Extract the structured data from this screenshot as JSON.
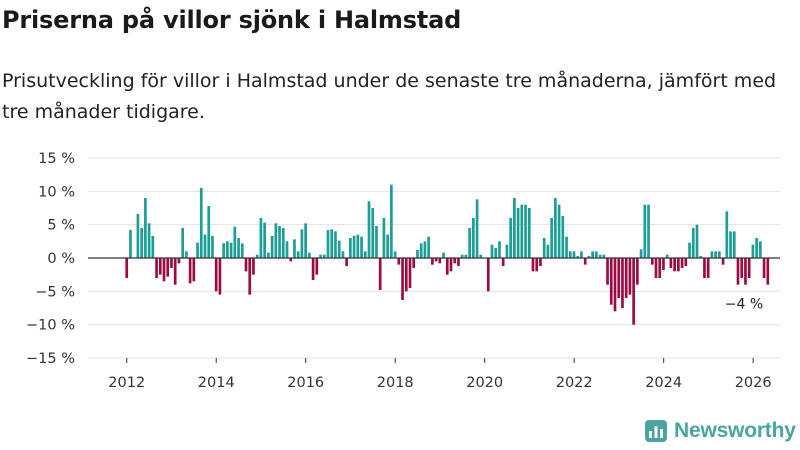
{
  "title": "Priserna på villor sjönk i Halmstad",
  "subtitle": "Prisutveckling för villor i Halmstad under de senaste tre månaderna, jämfört med tre månader tidigare.",
  "brand": "Newsworthy",
  "colors": {
    "positive": "#1a9e96",
    "negative": "#9c0a45",
    "grid": "#e3e3e3",
    "brand": "#4aa5a0"
  },
  "chart_data": {
    "type": "bar",
    "title": "Priserna på villor sjönk i Halmstad",
    "xlabel": "",
    "ylabel": "",
    "x_start": 2012.0,
    "x_step": 0.0833,
    "xlim": [
      2011.0,
      2026.6
    ],
    "ylim": [
      -15,
      15
    ],
    "yticks": [
      15,
      10,
      5,
      0,
      -5,
      -10,
      -15
    ],
    "ytick_labels": [
      "15 %",
      "10 %",
      "5 %",
      "0 %",
      "−5 %",
      "−10 %",
      "−15 %"
    ],
    "xticks": [
      2012,
      2014,
      2016,
      2018,
      2020,
      2022,
      2024,
      2026
    ],
    "xtick_labels": [
      "2012",
      "2014",
      "2016",
      "2018",
      "2020",
      "2022",
      "2024",
      "2026"
    ],
    "last_value_label": "−4 %",
    "values": [
      -3,
      4.2,
      0,
      6.6,
      4.5,
      9,
      5.2,
      3.3,
      -3,
      -2.5,
      -3.5,
      -2.8,
      -1.5,
      -4,
      -0.8,
      4.5,
      1,
      -3.8,
      -3.5,
      2.3,
      10.5,
      3.5,
      7.8,
      3.3,
      -5,
      -5.5,
      2.2,
      2.5,
      2.3,
      4.7,
      3,
      2.2,
      -2,
      -5.5,
      -2.5,
      0.5,
      6,
      5.3,
      0.8,
      3.3,
      5.2,
      4.8,
      4.5,
      2.5,
      -0.5,
      2.8,
      1,
      4.3,
      5.2,
      0.8,
      -3.3,
      -2.5,
      0.5,
      0.5,
      4.2,
      4.3,
      4,
      2.6,
      1,
      -1.2,
      3,
      3.3,
      3.5,
      3.2,
      1,
      8.5,
      7.5,
      4.8,
      -4.8,
      6,
      3.5,
      11,
      1,
      -1,
      -6.3,
      -5,
      -4.5,
      -1.5,
      1.2,
      2.2,
      2.5,
      3.2,
      -1,
      -0.5,
      -0.8,
      0.8,
      -2.5,
      -2,
      -0.8,
      -1.2,
      0.5,
      0.5,
      4.5,
      6,
      8.8,
      0.5,
      0,
      -5,
      2,
      1.5,
      2.5,
      -1.2,
      2,
      6,
      9,
      7.5,
      8,
      8,
      7.5,
      -2,
      -2,
      -1.2,
      3,
      2,
      6,
      9,
      8,
      6.3,
      3.2,
      1,
      1,
      0.3,
      1,
      -1,
      0.3,
      1,
      1,
      0.5,
      0.5,
      -4,
      -7,
      -8,
      -6,
      -7.5,
      -6,
      -5.5,
      -10,
      -4,
      1.3,
      8,
      8,
      -1,
      -3,
      -3,
      -1.8,
      0.5,
      -1.5,
      -2,
      -2,
      -1.5,
      -1.2,
      2.3,
      4.5,
      5,
      0.3,
      -3,
      -3,
      1,
      1,
      1,
      -1,
      7,
      4,
      4,
      -4,
      -3,
      -4,
      -3,
      2,
      3,
      2.5,
      -3,
      -4
    ]
  }
}
